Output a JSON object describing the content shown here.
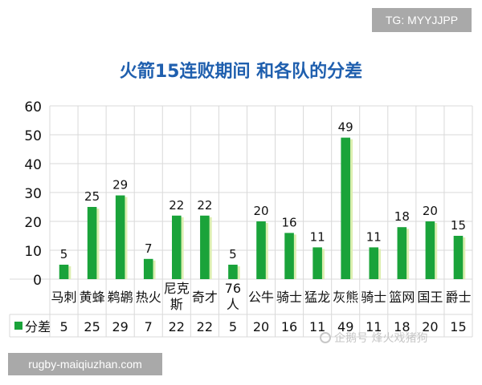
{
  "chart_data": {
    "type": "bar",
    "title": "火箭15连败期间 和各队的分差",
    "categories": [
      "马刺",
      "黄蜂",
      "鹈鹕",
      "热火",
      "尼克斯",
      "奇才",
      "76人",
      "公牛",
      "骑士",
      "猛龙",
      "灰熊",
      "骑士",
      "篮网",
      "国王",
      "爵士"
    ],
    "category_lines": [
      [
        "马刺"
      ],
      [
        "黄蜂"
      ],
      [
        "鹈鹕"
      ],
      [
        "热火"
      ],
      [
        "尼克",
        "斯"
      ],
      [
        "奇才"
      ],
      [
        "76",
        "人"
      ],
      [
        "公牛"
      ],
      [
        "骑士"
      ],
      [
        "猛龙"
      ],
      [
        "灰熊"
      ],
      [
        "骑士"
      ],
      [
        "篮网"
      ],
      [
        "国王"
      ],
      [
        "爵士"
      ]
    ],
    "series": [
      {
        "name": "分差",
        "values": [
          5,
          25,
          29,
          7,
          22,
          22,
          5,
          20,
          16,
          11,
          49,
          11,
          18,
          20,
          15
        ]
      }
    ],
    "ylim": [
      0,
      60
    ],
    "yticks": [
      0,
      10,
      20,
      30,
      40,
      50,
      60
    ],
    "grid": true,
    "legend": "data-table",
    "colors": {
      "bar": "#1aa33a",
      "bar_shadow": "#dcefb0",
      "title": "#1f5fae",
      "grid": "#d9d9d9",
      "text": "#111111"
    }
  },
  "watermarks": {
    "tg": "TG: MYYJJPP",
    "url": "rugby-maiqiuzhan.com",
    "credit": "企鹅号 烽火戏猪狗"
  }
}
